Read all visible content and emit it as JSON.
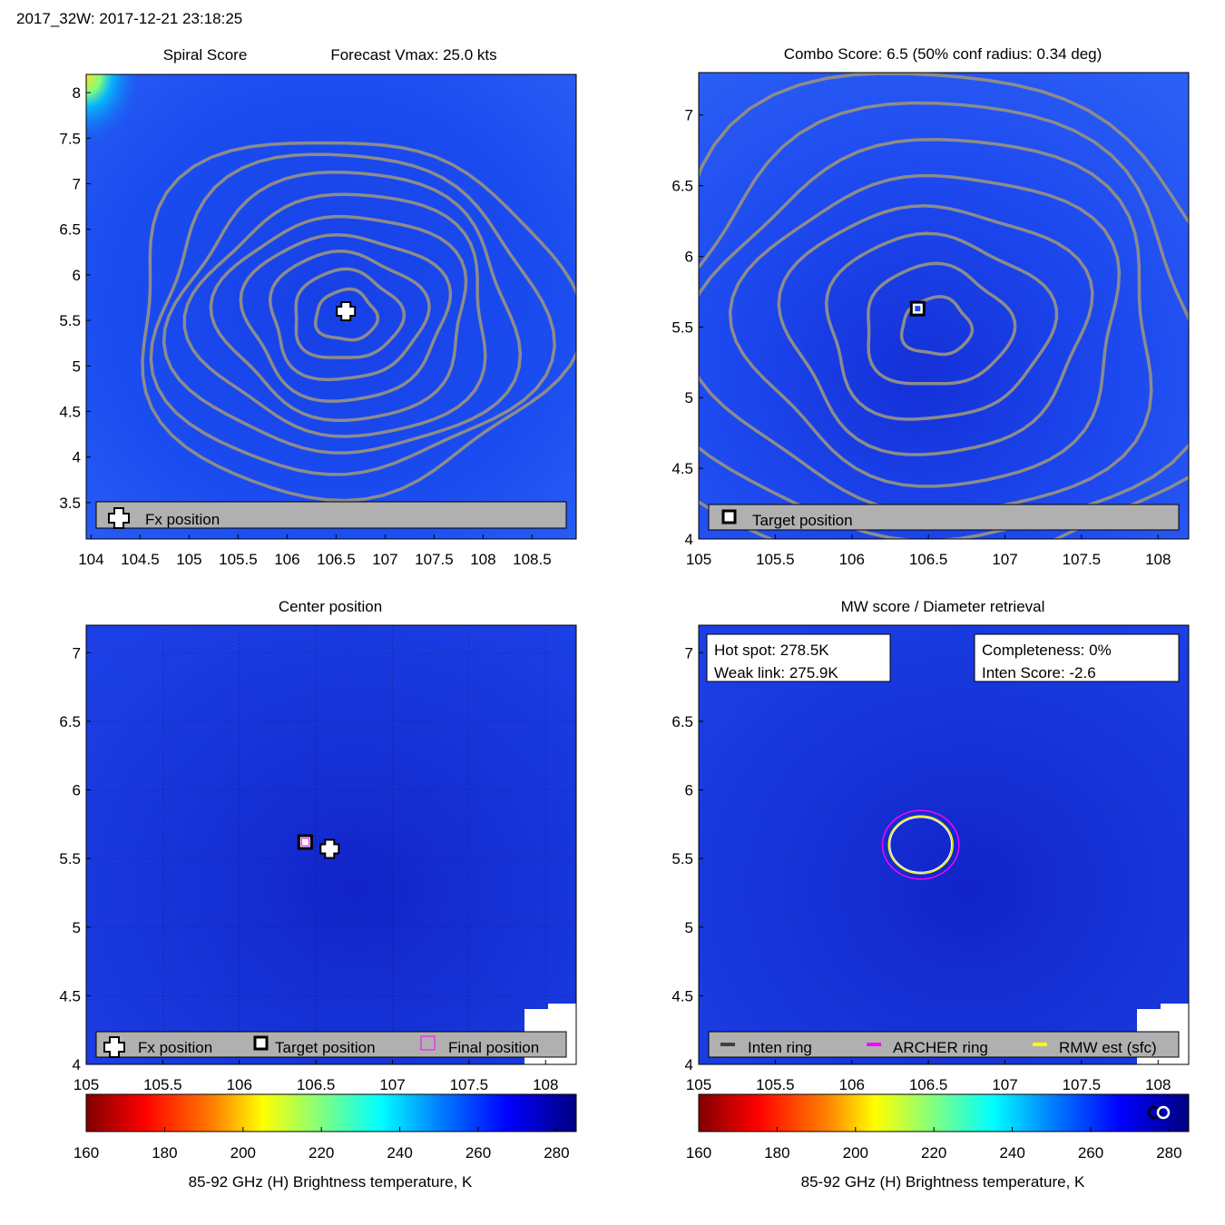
{
  "header": {
    "text": "2017_32W: 2017-12-21 23:18:25"
  },
  "colors": {
    "contour": "#8c8c8c",
    "legend_bg": "#b0b0b0",
    "inten_ring": "#404040",
    "archer_ring": "#ff00ff",
    "rmw_ring": "#ffff00",
    "colorbar_stops": [
      "#800000",
      "#ff0000",
      "#ff8000",
      "#ffff00",
      "#80ff80",
      "#00ffff",
      "#0080ff",
      "#0000ff",
      "#000080"
    ]
  },
  "chart_data": [
    {
      "type": "heatmap",
      "panel": "spiral",
      "title_left": "Spiral Score",
      "title_right": "Forecast Vmax: 25.0 kts",
      "xlim": [
        103.95,
        108.95
      ],
      "ylim": [
        3.1,
        8.2
      ],
      "xticks": [
        104,
        104.5,
        105,
        105.5,
        106,
        106.5,
        107,
        107.5,
        108,
        108.5
      ],
      "xtick_labels": [
        "104",
        "104.5",
        "105",
        "105.5",
        "106",
        "106.5",
        "107",
        "107.5",
        "108",
        "108.5"
      ],
      "yticks": [
        3.5,
        4,
        4.5,
        5,
        5.5,
        6,
        6.5,
        7,
        7.5,
        8
      ],
      "ytick_labels": [
        "3.5",
        "4",
        "4.5",
        "5",
        "5.5",
        "6",
        "6.5",
        "7",
        "7.5",
        "8"
      ],
      "markers": [
        {
          "type": "plus",
          "x": 106.6,
          "y": 5.6
        }
      ],
      "contour_center": {
        "x": 106.6,
        "y": 5.55
      },
      "legend": [
        "Fx position"
      ]
    },
    {
      "type": "heatmap",
      "panel": "combo",
      "title": "Combo Score: 6.5  (50% conf radius: 0.34 deg)",
      "xlim": [
        105,
        108.2
      ],
      "ylim": [
        4,
        7.3
      ],
      "xticks": [
        105,
        105.5,
        106,
        106.5,
        107,
        107.5,
        108
      ],
      "xtick_labels": [
        "105",
        "105.5",
        "106",
        "106.5",
        "107",
        "107.5",
        "108"
      ],
      "yticks": [
        4,
        4.5,
        5,
        5.5,
        6,
        6.5,
        7
      ],
      "ytick_labels": [
        "4",
        "4.5",
        "5",
        "5.5",
        "6",
        "6.5",
        "7"
      ],
      "markers": [
        {
          "type": "square",
          "x": 106.43,
          "y": 5.63
        }
      ],
      "contour_center": {
        "x": 106.55,
        "y": 5.5
      },
      "legend": [
        "Target position"
      ]
    },
    {
      "type": "heatmap",
      "panel": "center",
      "title": "Center position",
      "xlim": [
        105,
        108.2
      ],
      "ylim": [
        4,
        7.2
      ],
      "xticks": [
        105,
        105.5,
        106,
        106.5,
        107,
        107.5,
        108
      ],
      "xtick_labels": [
        "105",
        "105.5",
        "106",
        "106.5",
        "107",
        "107.5",
        "108"
      ],
      "yticks": [
        4,
        4.5,
        5,
        5.5,
        6,
        6.5,
        7
      ],
      "ytick_labels": [
        "4",
        "4.5",
        "5",
        "5.5",
        "6",
        "6.5",
        "7"
      ],
      "markers": [
        {
          "type": "square",
          "x": 106.43,
          "y": 5.62
        },
        {
          "type": "plus",
          "x": 106.59,
          "y": 5.57
        }
      ],
      "legend": [
        "Fx position",
        "Target position",
        "Final position"
      ],
      "colorbar": {
        "ticks": [
          160,
          180,
          200,
          220,
          240,
          260,
          280
        ],
        "tick_labels": [
          "160",
          "180",
          "200",
          "220",
          "240",
          "260",
          "280"
        ],
        "range": [
          160,
          285
        ],
        "label": "85-92 GHz (H) Brightness temperature, K"
      }
    },
    {
      "type": "heatmap",
      "panel": "mw",
      "title": "MW score / Diameter retrieval",
      "xlim": [
        105,
        108.2
      ],
      "ylim": [
        4,
        7.2
      ],
      "xticks": [
        105,
        105.5,
        106,
        106.5,
        107,
        107.5,
        108
      ],
      "xtick_labels": [
        "105",
        "105.5",
        "106",
        "106.5",
        "107",
        "107.5",
        "108"
      ],
      "yticks": [
        4,
        4.5,
        5,
        5.5,
        6,
        6.5,
        7
      ],
      "ytick_labels": [
        "4",
        "4.5",
        "5",
        "5.5",
        "6",
        "6.5",
        "7"
      ],
      "rings": {
        "center": {
          "x": 106.45,
          "y": 5.6
        },
        "inner_radius_deg": 0.21,
        "outer_radius_deg": 0.25
      },
      "info_left": [
        "Hot spot: 278.5K",
        "Weak link: 275.9K"
      ],
      "info_right": [
        "Completeness: 0%",
        "Inten Score: -2.6"
      ],
      "legend": [
        "Inten ring",
        "ARCHER ring",
        "RMW est (sfc)"
      ],
      "colorbar": {
        "ticks": [
          160,
          180,
          200,
          220,
          240,
          260,
          280
        ],
        "tick_labels": [
          "160",
          "180",
          "200",
          "220",
          "240",
          "260",
          "280"
        ],
        "range": [
          160,
          285
        ],
        "label": "85-92 GHz (H) Brightness temperature, K"
      }
    }
  ]
}
